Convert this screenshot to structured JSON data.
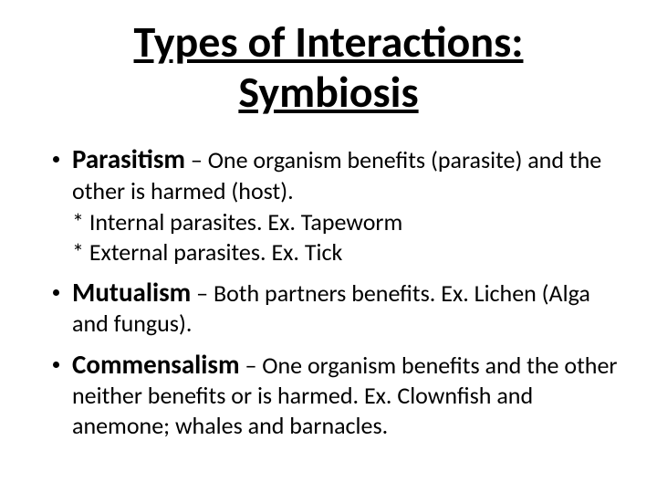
{
  "title": {
    "line1": "Types of Interactions:",
    "line2": "Symbiosis",
    "fontsize_pt": 36
  },
  "body_fontsize_pt": 26,
  "term_fontsize_pt": 29,
  "items": [
    {
      "term": "Parasitism",
      "def": " – One organism benefits (parasite) and the other is harmed (host).",
      "sublines": [
        "* Internal parasites. Ex. Tapeworm",
        "* External parasites. Ex. Tick"
      ]
    },
    {
      "term": "Mutualism",
      "def": " – Both partners benefits.  Ex. Lichen (Alga and fungus).",
      "sublines": []
    },
    {
      "term": "Commensalism",
      "def": " – One organism benefits and the other neither benefits or is harmed.  Ex. Clownfish and anemone; whales and barnacles.",
      "sublines": []
    }
  ],
  "colors": {
    "background": "#ffffff",
    "text": "#000000",
    "bullet": "#000000"
  }
}
